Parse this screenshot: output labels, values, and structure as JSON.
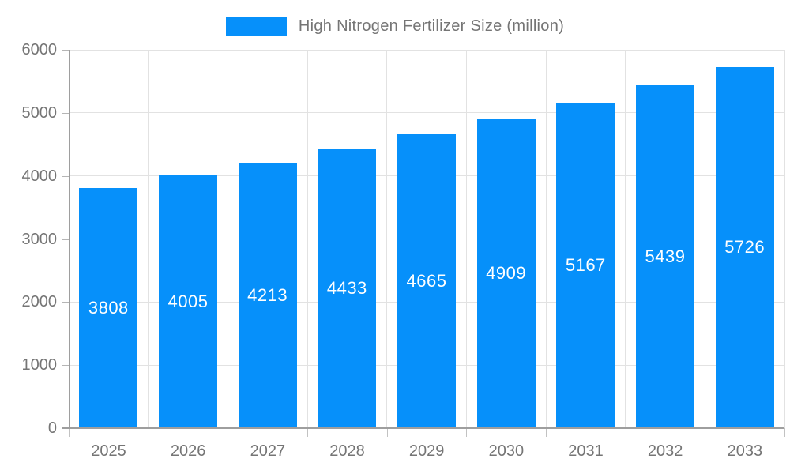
{
  "legend": {
    "label": "High Nitrogen Fertilizer Size (million)"
  },
  "chart_data": {
    "type": "bar",
    "title": "High Nitrogen Fertilizer Size (million)",
    "categories": [
      "2025",
      "2026",
      "2027",
      "2028",
      "2029",
      "2030",
      "2031",
      "2032",
      "2033"
    ],
    "values": [
      3808,
      4005,
      4213,
      4433,
      4665,
      4909,
      5167,
      5439,
      5726
    ],
    "xlabel": "",
    "ylabel": "",
    "ylim": [
      0,
      6000
    ],
    "yticks": [
      0,
      1000,
      2000,
      3000,
      4000,
      5000,
      6000
    ],
    "grid": true,
    "legend_position": "top",
    "bar_color": "#0690fa",
    "bar_value_label_color": "#ffffff",
    "axis_text_color": "#757575",
    "gridline_color": "#e2e2e2",
    "axis_line_color": "#9e9e9e"
  }
}
